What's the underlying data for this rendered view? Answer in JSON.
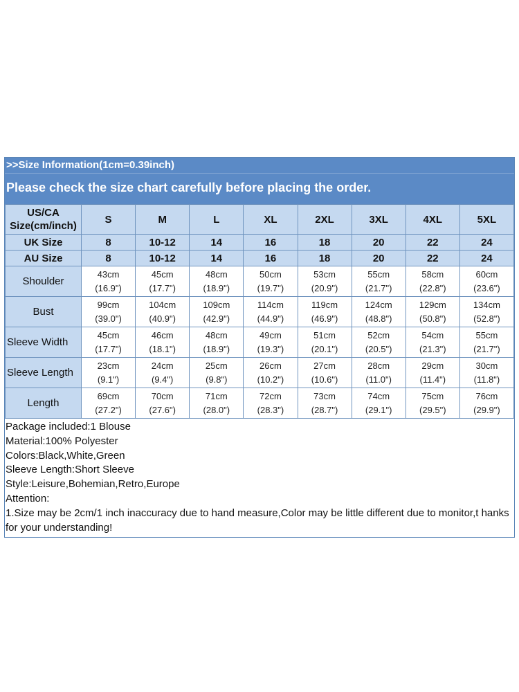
{
  "banner": {
    "line1": ">>Size Information(1cm=0.39inch)",
    "line2": "Please check the size chart carefully before placing the order."
  },
  "header": {
    "corner": [
      "US/CA",
      "Size(cm/inch)"
    ],
    "sizes": [
      "S",
      "M",
      "L",
      "XL",
      "2XL",
      "3XL",
      "4XL",
      "5XL"
    ]
  },
  "conversions": [
    {
      "label": "UK Size",
      "values": [
        "8",
        "10-12",
        "14",
        "16",
        "18",
        "20",
        "22",
        "24"
      ]
    },
    {
      "label": "AU Size",
      "values": [
        "8",
        "10-12",
        "14",
        "16",
        "18",
        "20",
        "22",
        "24"
      ]
    }
  ],
  "measurements": [
    {
      "label": "Shoulder",
      "cm": [
        "43cm",
        "45cm",
        "48cm",
        "50cm",
        "53cm",
        "55cm",
        "58cm",
        "60cm"
      ],
      "inch": [
        "(16.9\")",
        "(17.7\")",
        "(18.9\")",
        "(19.7\")",
        "(20.9\")",
        "(21.7\")",
        "(22.8\")",
        "(23.6\")"
      ]
    },
    {
      "label": "Bust",
      "cm": [
        "99cm",
        "104cm",
        "109cm",
        "114cm",
        "119cm",
        "124cm",
        "129cm",
        "134cm"
      ],
      "inch": [
        "(39.0\")",
        "(40.9\")",
        "(42.9\")",
        "(44.9\")",
        "(46.9\")",
        "(48.8\")",
        "(50.8\")",
        "(52.8\")"
      ]
    },
    {
      "label": "Sleeve Width",
      "cm": [
        "45cm",
        "46cm",
        "48cm",
        "49cm",
        "51cm",
        "52cm",
        "54cm",
        "55cm"
      ],
      "inch": [
        "(17.7\")",
        "(18.1\")",
        "(18.9\")",
        "(19.3\")",
        "(20.1\")",
        "(20.5\")",
        "(21.3\")",
        "(21.7\")"
      ]
    },
    {
      "label": "Sleeve Length",
      "cm": [
        "23cm",
        "24cm",
        "25cm",
        "26cm",
        "27cm",
        "28cm",
        "29cm",
        "30cm"
      ],
      "inch": [
        "(9.1\")",
        "(9.4\")",
        "(9.8\")",
        "(10.2\")",
        "(10.6\")",
        "(11.0\")",
        "(11.4\")",
        "(11.8\")"
      ]
    },
    {
      "label": "Length",
      "cm": [
        "69cm",
        "70cm",
        "71cm",
        "72cm",
        "73cm",
        "74cm",
        "75cm",
        "76cm"
      ],
      "inch": [
        "(27.2\")",
        "(27.6\")",
        "(28.0\")",
        "(28.3\")",
        "(28.7\")",
        "(29.1\")",
        "(29.5\")",
        "(29.9\")"
      ]
    }
  ],
  "info": [
    "Package included:1 Blouse",
    "Material:100% Polyester",
    "Colors:Black,White,Green",
    "Sleeve Length:Short Sleeve",
    "Style:Leisure,Bohemian,Retro,Europe",
    "Attention:",
    "1.Size may be 2cm/1 inch inaccuracy due to hand measure,Color may be little different due to monitor,t hanks for your understanding!"
  ],
  "colors": {
    "banner": "#5b8ac6",
    "header_fill": "#c5d9f0",
    "grid": "#6e93be"
  }
}
